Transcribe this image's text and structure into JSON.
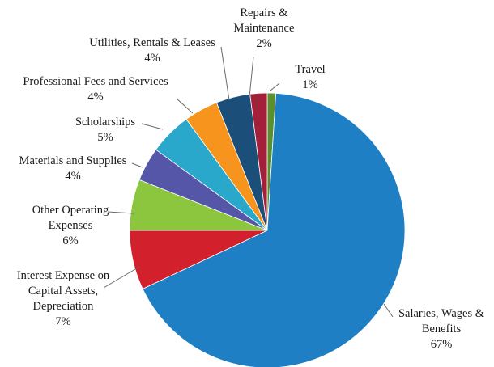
{
  "chart_data": {
    "type": "pie",
    "slices": [
      {
        "label_lines": [
          "Travel",
          "1%"
        ],
        "value": 1,
        "color": "#5b8f2e"
      },
      {
        "label_lines": [
          "Salaries, Wages &",
          "Benefits",
          "67%"
        ],
        "value": 67,
        "color": "#1f7fc4"
      },
      {
        "label_lines": [
          "Interest Expense on",
          "Capital Assets,",
          "Depreciation",
          "7%"
        ],
        "value": 7,
        "color": "#d3202d"
      },
      {
        "label_lines": [
          "Other Operating",
          "Expenses",
          "6%"
        ],
        "value": 6,
        "color": "#8cc63f"
      },
      {
        "label_lines": [
          "Materials and Supplies",
          "4%"
        ],
        "value": 4,
        "color": "#5656a8"
      },
      {
        "label_lines": [
          "Scholarships",
          "5%"
        ],
        "value": 5,
        "color": "#2aa8cc"
      },
      {
        "label_lines": [
          "Professional Fees and Services",
          "4%"
        ],
        "value": 4,
        "color": "#f7941d"
      },
      {
        "label_lines": [
          "Utilities, Rentals & Leases",
          "4%"
        ],
        "value": 4,
        "color": "#1c4e7a"
      },
      {
        "label_lines": [
          "Repairs &",
          "Maintenance",
          "2%"
        ],
        "value": 2,
        "color": "#a3203a"
      }
    ]
  }
}
